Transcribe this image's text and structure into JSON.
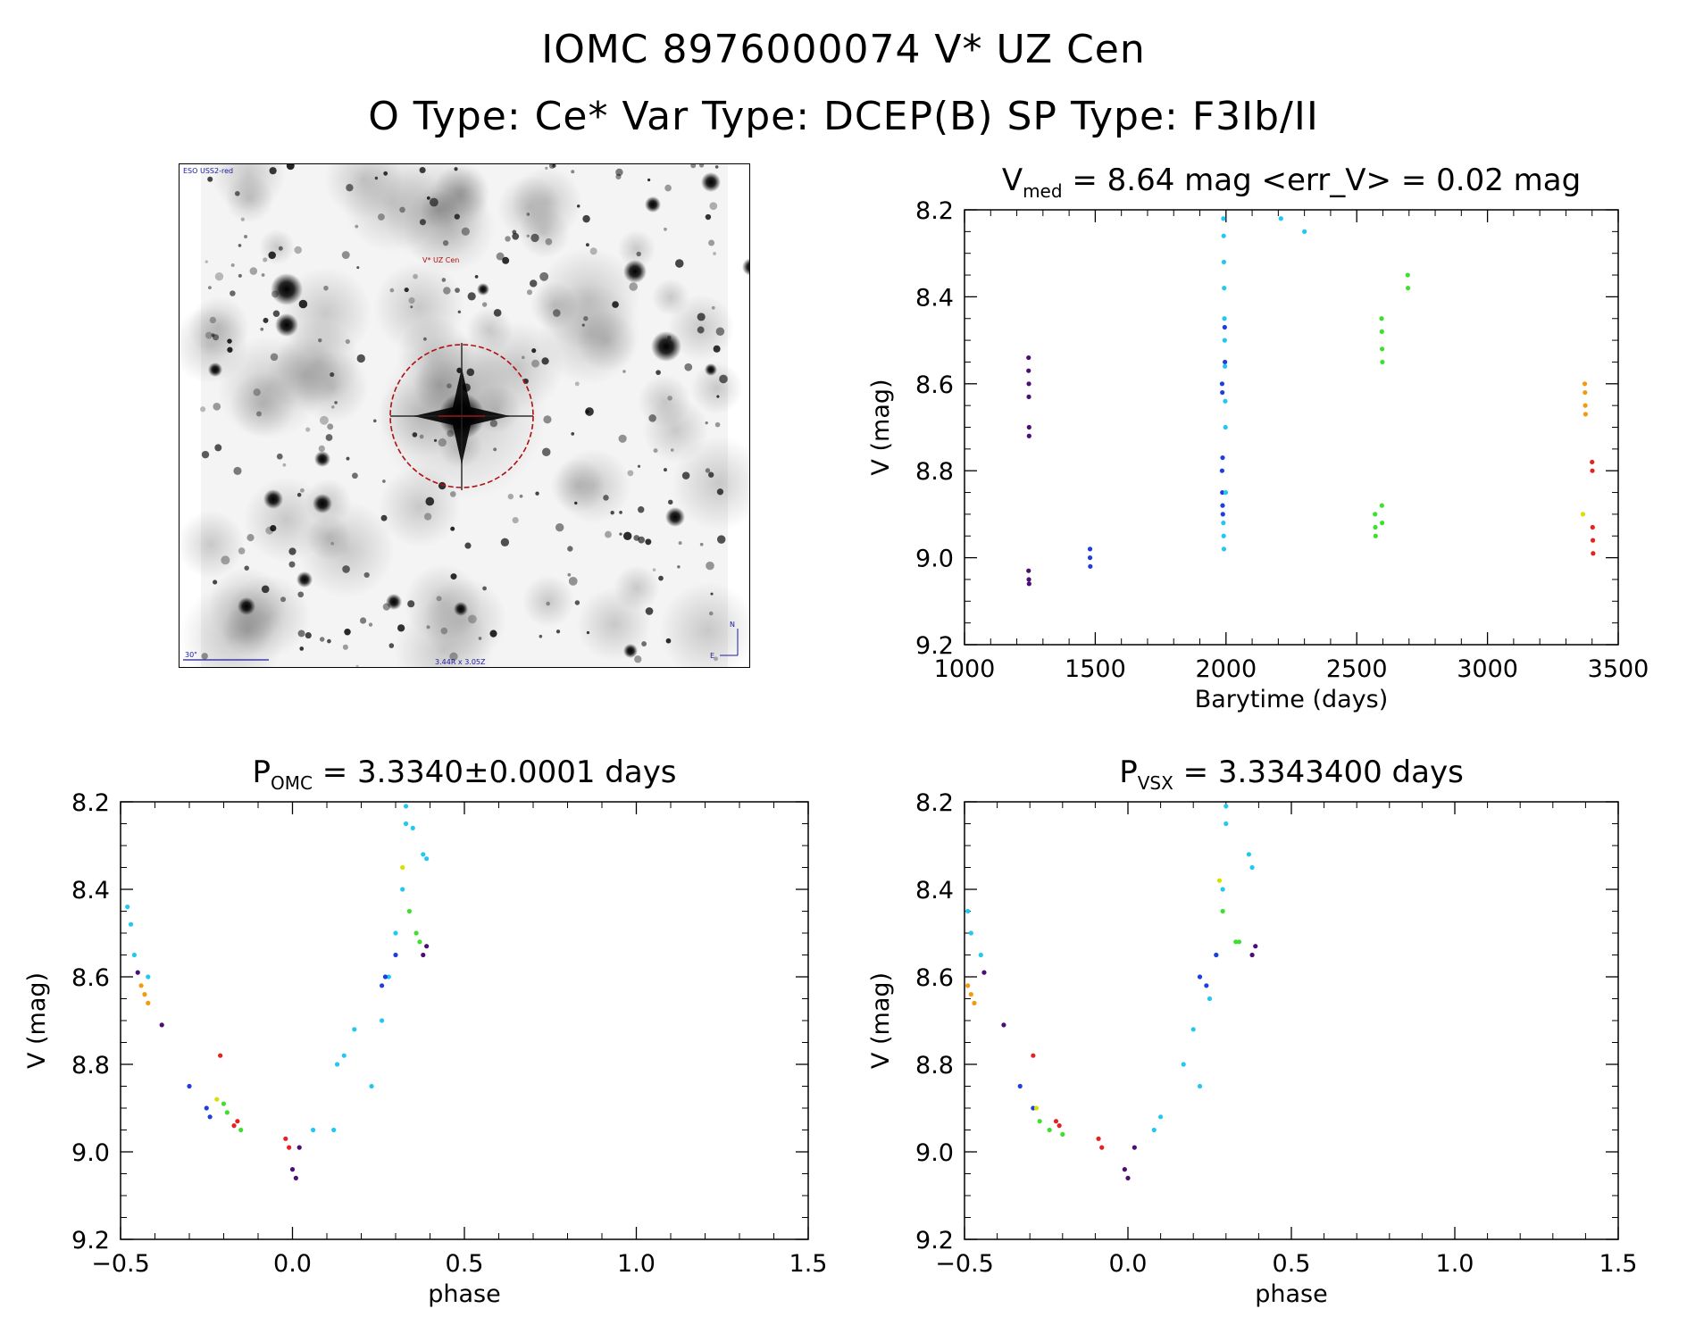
{
  "header": {
    "line1": "IOMC 8976000074   V* UZ Cen",
    "line2": "O Type: Ce*  Var Type: DCEP(B)  SP Type: F3Ib/II"
  },
  "image_panel": {
    "survey_label": "ESO USS2-red",
    "target_label": "V* UZ Cen",
    "scale_label": "30\"",
    "fov_label": "3.44R x 3.05Z",
    "north_label": "N",
    "east_label": "E"
  },
  "colors": {
    "purple": "#4b0e74",
    "blue": "#1f3ee0",
    "cyan": "#22c8f0",
    "green": "#3ee030",
    "yellow": "#d8e000",
    "orange": "#f29a10",
    "red": "#e52222",
    "marker": "#b01010"
  },
  "chart_data": [
    {
      "id": "lightcurve",
      "type": "scatter",
      "title_main": "V",
      "title_sub": "med",
      "title_rest": " = 8.64 mag <err_V> = 0.02 mag",
      "xlabel": "Barytime (days)",
      "ylabel": "V (mag)",
      "xlim": [
        1000,
        3500
      ],
      "ylim": [
        9.2,
        8.2
      ],
      "xticks": [
        "1000",
        "1500",
        "2000",
        "2500",
        "3000",
        "3500"
      ],
      "xtick_values": [
        1000,
        1500,
        2000,
        2500,
        3000,
        3500
      ],
      "yticks": [
        "8.2",
        "8.4",
        "8.6",
        "8.8",
        "9.0",
        "9.2"
      ],
      "ytick_values": [
        8.2,
        8.4,
        8.6,
        8.8,
        9.0,
        9.2
      ],
      "series": [
        {
          "color": "purple",
          "points": [
            [
              1245,
              8.54
            ],
            [
              1245,
              8.57
            ],
            [
              1246,
              8.6
            ],
            [
              1246,
              8.63
            ],
            [
              1247,
              8.7
            ],
            [
              1247,
              8.72
            ],
            [
              1245,
              9.03
            ],
            [
              1246,
              9.05
            ],
            [
              1247,
              9.06
            ]
          ]
        },
        {
          "color": "blue",
          "points": [
            [
              1480,
              8.98
            ],
            [
              1480,
              9.0
            ],
            [
              1481,
              9.02
            ],
            [
              1985,
              8.6
            ],
            [
              1986,
              8.62
            ],
            [
              1987,
              8.77
            ],
            [
              1985,
              8.8
            ],
            [
              1986,
              8.85
            ],
            [
              1987,
              8.88
            ],
            [
              1988,
              8.9
            ],
            [
              1995,
              8.47
            ],
            [
              1996,
              8.55
            ]
          ]
        },
        {
          "color": "cyan",
          "points": [
            [
              1990,
              8.22
            ],
            [
              1991,
              8.26
            ],
            [
              1992,
              8.32
            ],
            [
              1993,
              8.38
            ],
            [
              1994,
              8.45
            ],
            [
              1995,
              8.5
            ],
            [
              1996,
              8.56
            ],
            [
              1997,
              8.64
            ],
            [
              1998,
              8.7
            ],
            [
              1999,
              8.85
            ],
            [
              1990,
              8.92
            ],
            [
              1991,
              8.95
            ],
            [
              1992,
              8.98
            ],
            [
              2210,
              8.22
            ],
            [
              2300,
              8.25
            ]
          ]
        },
        {
          "color": "green",
          "points": [
            [
              2570,
              8.9
            ],
            [
              2571,
              8.93
            ],
            [
              2572,
              8.95
            ],
            [
              2595,
              8.45
            ],
            [
              2596,
              8.48
            ],
            [
              2597,
              8.52
            ],
            [
              2598,
              8.55
            ],
            [
              2596,
              8.88
            ],
            [
              2597,
              8.92
            ],
            [
              2695,
              8.35
            ],
            [
              2696,
              8.38
            ]
          ]
        },
        {
          "color": "yellow",
          "points": [
            [
              3365,
              8.9
            ]
          ]
        },
        {
          "color": "orange",
          "points": [
            [
              3372,
              8.6
            ],
            [
              3373,
              8.62
            ],
            [
              3374,
              8.65
            ],
            [
              3375,
              8.67
            ]
          ]
        },
        {
          "color": "red",
          "points": [
            [
              3400,
              8.78
            ],
            [
              3401,
              8.8
            ],
            [
              3402,
              8.93
            ],
            [
              3403,
              8.96
            ],
            [
              3404,
              8.99
            ]
          ]
        }
      ]
    },
    {
      "id": "phase_omc",
      "type": "scatter",
      "title_main": "P",
      "title_sub": "OMC",
      "title_rest": " = 3.3340±0.0001 days",
      "xlabel": "phase",
      "ylabel": "V (mag)",
      "xlim": [
        -0.5,
        1.5
      ],
      "ylim": [
        9.2,
        8.2
      ],
      "xticks": [
        "−0.5",
        "0.0",
        "0.5",
        "1.0",
        "1.5"
      ],
      "xtick_values": [
        -0.5,
        0.0,
        0.5,
        1.0,
        1.5
      ],
      "yticks": [
        "8.2",
        "8.4",
        "8.6",
        "8.8",
        "9.0",
        "9.2"
      ],
      "ytick_values": [
        8.2,
        8.4,
        8.6,
        8.8,
        9.0,
        9.2
      ],
      "series": [
        {
          "color": "cyan",
          "points": [
            [
              -0.48,
              8.44
            ],
            [
              -0.47,
              8.48
            ],
            [
              -0.46,
              8.55
            ],
            [
              -0.42,
              8.6
            ],
            [
              0.06,
              8.95
            ],
            [
              0.12,
              8.95
            ],
            [
              0.13,
              8.8
            ],
            [
              0.15,
              8.78
            ],
            [
              0.18,
              8.72
            ],
            [
              0.23,
              8.85
            ],
            [
              0.26,
              8.7
            ],
            [
              0.28,
              8.6
            ],
            [
              0.3,
              8.5
            ],
            [
              0.32,
              8.4
            ],
            [
              0.33,
              8.25
            ],
            [
              0.33,
              8.21
            ],
            [
              0.35,
              8.26
            ],
            [
              0.38,
              8.32
            ],
            [
              0.39,
              8.33
            ]
          ]
        },
        {
          "color": "blue",
          "points": [
            [
              -0.3,
              8.85
            ],
            [
              -0.25,
              8.9
            ],
            [
              -0.24,
              8.92
            ],
            [
              0.27,
              8.6
            ],
            [
              0.26,
              8.62
            ],
            [
              0.3,
              8.55
            ]
          ]
        },
        {
          "color": "green",
          "points": [
            [
              -0.2,
              8.89
            ],
            [
              -0.19,
              8.91
            ],
            [
              -0.15,
              8.95
            ],
            [
              0.34,
              8.45
            ],
            [
              0.36,
              8.5
            ],
            [
              0.37,
              8.52
            ]
          ]
        },
        {
          "color": "yellow",
          "points": [
            [
              -0.22,
              8.88
            ],
            [
              0.32,
              8.35
            ]
          ]
        },
        {
          "color": "orange",
          "points": [
            [
              -0.44,
              8.62
            ],
            [
              -0.43,
              8.64
            ],
            [
              -0.42,
              8.66
            ]
          ]
        },
        {
          "color": "red",
          "points": [
            [
              -0.21,
              8.78
            ],
            [
              -0.17,
              8.94
            ],
            [
              -0.16,
              8.93
            ],
            [
              -0.02,
              8.97
            ],
            [
              -0.01,
              8.99
            ]
          ]
        },
        {
          "color": "purple",
          "points": [
            [
              -0.45,
              8.59
            ],
            [
              -0.38,
              8.71
            ],
            [
              0.0,
              9.04
            ],
            [
              0.01,
              9.06
            ],
            [
              0.02,
              8.99
            ],
            [
              0.38,
              8.55
            ],
            [
              0.39,
              8.53
            ]
          ]
        }
      ]
    },
    {
      "id": "phase_vsx",
      "type": "scatter",
      "title_main": "P",
      "title_sub": "VSX",
      "title_rest": " = 3.3343400 days",
      "xlabel": "phase",
      "ylabel": "V (mag)",
      "xlim": [
        -0.5,
        1.5
      ],
      "ylim": [
        9.2,
        8.2
      ],
      "xticks": [
        "−0.5",
        "0.0",
        "0.5",
        "1.0",
        "1.5"
      ],
      "xtick_values": [
        -0.5,
        0.0,
        0.5,
        1.0,
        1.5
      ],
      "yticks": [
        "8.2",
        "8.4",
        "8.6",
        "8.8",
        "9.0",
        "9.2"
      ],
      "ytick_values": [
        8.2,
        8.4,
        8.6,
        8.8,
        9.0,
        9.2
      ],
      "series": [
        {
          "color": "cyan",
          "points": [
            [
              -0.49,
              8.45
            ],
            [
              -0.48,
              8.5
            ],
            [
              -0.45,
              8.55
            ],
            [
              0.08,
              8.95
            ],
            [
              0.1,
              8.92
            ],
            [
              0.17,
              8.8
            ],
            [
              0.2,
              8.72
            ],
            [
              0.22,
              8.85
            ],
            [
              0.25,
              8.65
            ],
            [
              0.27,
              8.55
            ],
            [
              0.29,
              8.4
            ],
            [
              0.3,
              8.25
            ],
            [
              0.3,
              8.21
            ],
            [
              0.37,
              8.32
            ],
            [
              0.38,
              8.35
            ]
          ]
        },
        {
          "color": "blue",
          "points": [
            [
              -0.33,
              8.85
            ],
            [
              -0.29,
              8.9
            ],
            [
              0.22,
              8.6
            ],
            [
              0.24,
              8.62
            ],
            [
              0.27,
              8.55
            ]
          ]
        },
        {
          "color": "green",
          "points": [
            [
              -0.27,
              8.93
            ],
            [
              -0.24,
              8.95
            ],
            [
              -0.2,
              8.96
            ],
            [
              0.29,
              8.45
            ],
            [
              0.33,
              8.52
            ],
            [
              0.34,
              8.52
            ]
          ]
        },
        {
          "color": "yellow",
          "points": [
            [
              -0.28,
              8.9
            ],
            [
              0.28,
              8.38
            ]
          ]
        },
        {
          "color": "orange",
          "points": [
            [
              -0.49,
              8.62
            ],
            [
              -0.48,
              8.64
            ],
            [
              -0.47,
              8.66
            ]
          ]
        },
        {
          "color": "red",
          "points": [
            [
              -0.29,
              8.78
            ],
            [
              -0.22,
              8.93
            ],
            [
              -0.21,
              8.94
            ],
            [
              -0.09,
              8.97
            ],
            [
              -0.08,
              8.99
            ]
          ]
        },
        {
          "color": "purple",
          "points": [
            [
              -0.44,
              8.59
            ],
            [
              -0.38,
              8.71
            ],
            [
              -0.01,
              9.04
            ],
            [
              0.0,
              9.06
            ],
            [
              0.02,
              8.99
            ],
            [
              0.38,
              8.55
            ],
            [
              0.39,
              8.53
            ]
          ]
        }
      ]
    }
  ]
}
